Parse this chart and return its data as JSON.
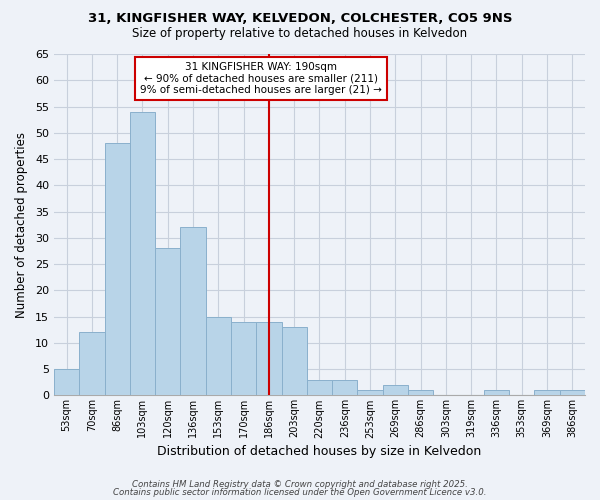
{
  "title_line1": "31, KINGFISHER WAY, KELVEDON, COLCHESTER, CO5 9NS",
  "title_line2": "Size of property relative to detached houses in Kelvedon",
  "xlabel": "Distribution of detached houses by size in Kelvedon",
  "ylabel": "Number of detached properties",
  "bar_labels": [
    "53sqm",
    "70sqm",
    "86sqm",
    "103sqm",
    "120sqm",
    "136sqm",
    "153sqm",
    "170sqm",
    "186sqm",
    "203sqm",
    "220sqm",
    "236sqm",
    "253sqm",
    "269sqm",
    "286sqm",
    "303sqm",
    "319sqm",
    "336sqm",
    "353sqm",
    "369sqm",
    "386sqm"
  ],
  "bar_values": [
    5,
    12,
    48,
    54,
    28,
    32,
    15,
    14,
    14,
    13,
    3,
    3,
    1,
    2,
    1,
    0,
    0,
    1,
    0,
    1,
    1
  ],
  "bar_color": "#b8d4e8",
  "bar_edge_color": "#8ab0cc",
  "ylim": [
    0,
    65
  ],
  "yticks": [
    0,
    5,
    10,
    15,
    20,
    25,
    30,
    35,
    40,
    45,
    50,
    55,
    60,
    65
  ],
  "vline_x_index": 8,
  "vline_color": "#cc0000",
  "annotation_title": "31 KINGFISHER WAY: 190sqm",
  "annotation_line1": "← 90% of detached houses are smaller (211)",
  "annotation_line2": "9% of semi-detached houses are larger (21) →",
  "annotation_box_color": "#ffffff",
  "annotation_box_edge": "#cc0000",
  "footer_line1": "Contains HM Land Registry data © Crown copyright and database right 2025.",
  "footer_line2": "Contains public sector information licensed under the Open Government Licence v3.0.",
  "background_color": "#eef2f8",
  "grid_color": "#c8d0dc"
}
